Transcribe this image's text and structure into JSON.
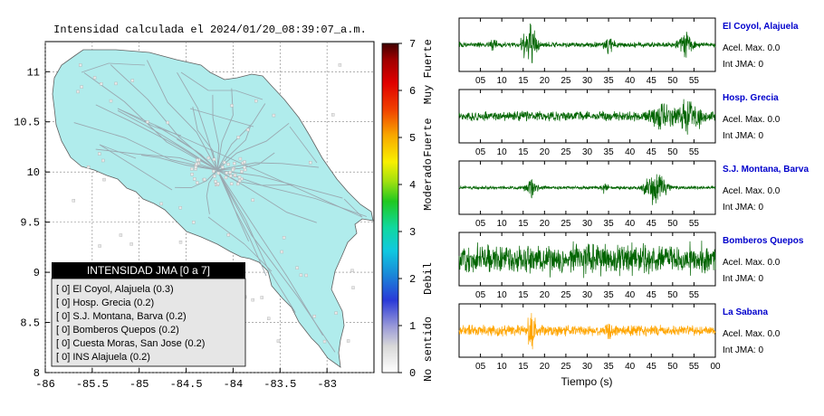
{
  "colors": {
    "land": "#b0ecec",
    "road": "#9aa8b0",
    "trace_green": "#006400",
    "trace_orange": "#ffa500",
    "station_name": "#0000cc",
    "legend_header_bg": "#000000",
    "legend_body_bg": "#e6e6e6"
  },
  "map": {
    "title": "Intensidad calculada el 2024/01/20_08:39:07_a.m.",
    "legend_title": "INTENSIDAD JMA [0 a 7]",
    "legend_rows": [
      "[ 0]  El Coyol, Alajuela (0.3)",
      "[ 0]  Hosp. Grecia (0.2)",
      "[ 0]  S.J. Montana, Barva (0.2)",
      "[ 0]  Bomberos Quepos (0.2)",
      "[ 0]  Cuesta Moras, San Jose (0.2)",
      "[ 0]  INS Alajuela (0.2)"
    ]
  },
  "colorbar": {
    "ticks": [
      "0",
      "1",
      "2",
      "3",
      "4",
      "5",
      "6",
      "7"
    ],
    "category_labels": [
      "No sentido",
      "Debil",
      "Moderado",
      "Fuerte",
      "Muy Fuerte"
    ]
  },
  "traces": {
    "xlabel": "Tiempo (s)",
    "stations": [
      {
        "name": "El Coyol, Alajuela",
        "accel": "Acel. Max. 0.0",
        "int": "Int JMA: 0"
      },
      {
        "name": "Hosp. Grecia",
        "accel": "Acel. Max. 0.0",
        "int": "Int JMA: 0"
      },
      {
        "name": "S.J. Montana, Barva",
        "accel": "Acel. Max. 0.0",
        "int": "Int JMA: 0"
      },
      {
        "name": "Bomberos Quepos",
        "accel": "Acel. Max. 0.0",
        "int": "Int JMA: 0"
      },
      {
        "name": "La Sabana",
        "accel": "Acel. Max. 0.0",
        "int": "Int JMA: 0"
      }
    ]
  },
  "chart_data": [
    {
      "type": "scatter",
      "title": "Intensidad calculada el 2024/01/20_08:39:07_a.m.",
      "xlim": [
        -86,
        -82.5
      ],
      "ylim": [
        8,
        11.3
      ],
      "xticks": [
        "-86",
        "-85.5",
        "-85",
        "-84.5",
        "-84",
        "-83.5",
        "-83"
      ],
      "yticks": [
        "8",
        "8.5",
        "9",
        "9.5",
        "10",
        "10.5",
        "11"
      ],
      "grid": true,
      "legend_placement": "bottom-left",
      "colorbar": {
        "range": [
          0,
          7
        ],
        "label": "INTENSIDAD JMA [0 a 7]"
      }
    },
    {
      "type": "line",
      "panels": [
        {
          "station": "El Coyol, Alajuela",
          "xticks": [
            "05",
            "10",
            "15",
            "20",
            "25",
            "30",
            "35",
            "40",
            "45",
            "50",
            "55"
          ]
        },
        {
          "station": "Hosp. Grecia",
          "xticks": [
            "05",
            "10",
            "15",
            "20",
            "25",
            "30",
            "35",
            "40",
            "45",
            "50",
            "55"
          ]
        },
        {
          "station": "S.J. Montana, Barva",
          "xticks": [
            "05",
            "10",
            "15",
            "20",
            "25",
            "30",
            "35",
            "40",
            "45",
            "50",
            "55"
          ]
        },
        {
          "station": "Bomberos Quepos",
          "xticks": [
            "05",
            "10",
            "15",
            "20",
            "25",
            "30",
            "35",
            "40",
            "45",
            "50",
            "55"
          ]
        },
        {
          "station": "La Sabana",
          "xticks": [
            "05",
            "10",
            "15",
            "20",
            "25",
            "30",
            "35",
            "40",
            "45",
            "50",
            "55",
            "00"
          ]
        }
      ],
      "xlabel": "Tiempo (s)",
      "x_range_s": [
        0,
        60
      ]
    }
  ]
}
